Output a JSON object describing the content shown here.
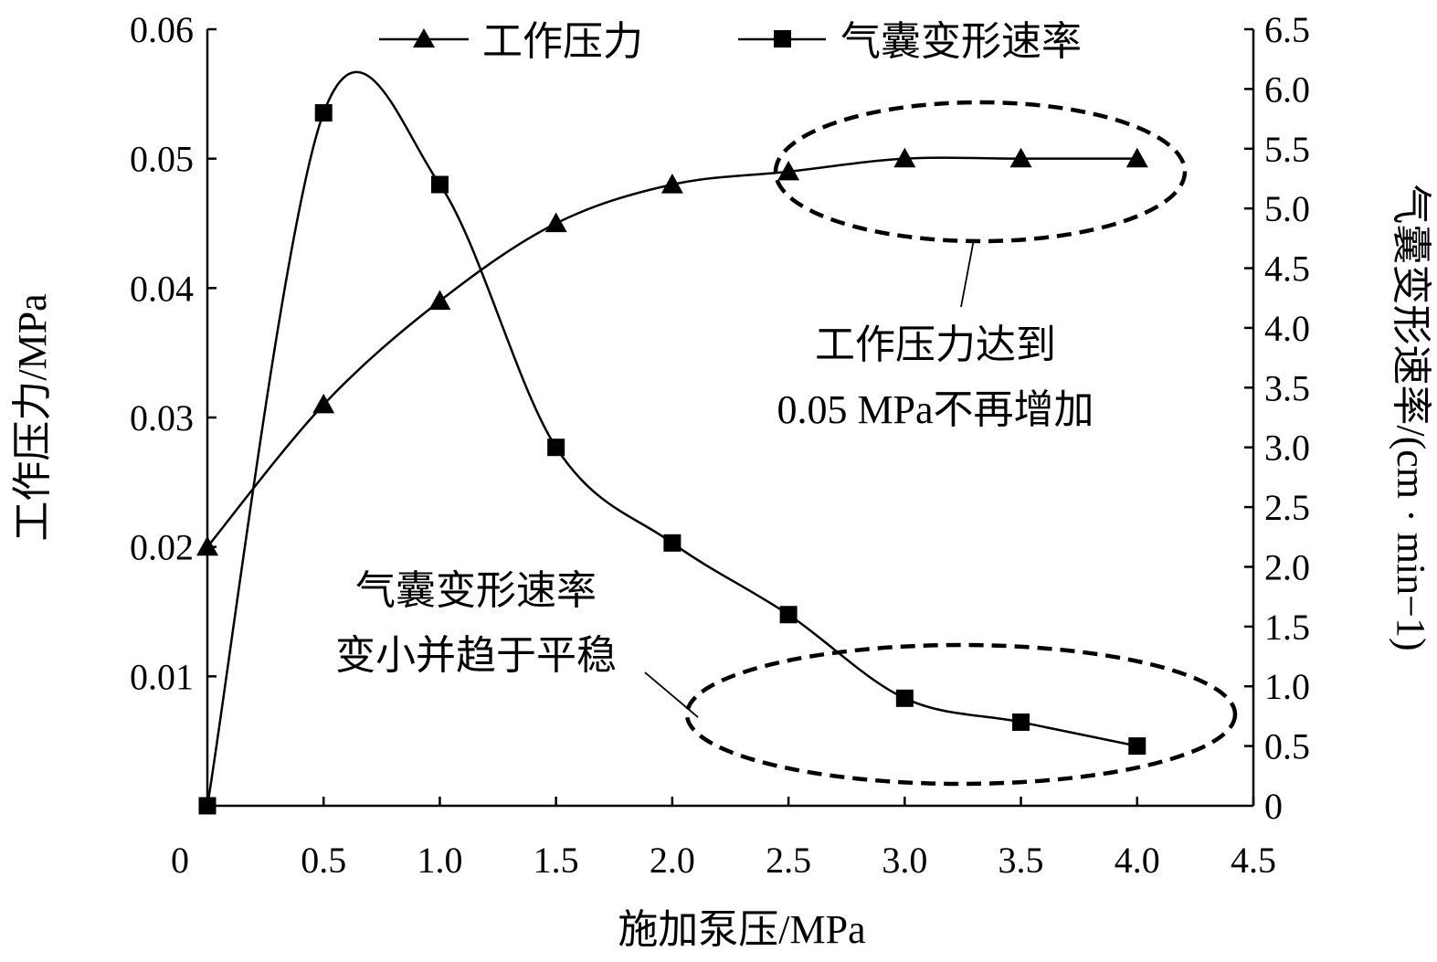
{
  "chart_data": {
    "type": "line",
    "x": [
      0,
      0.5,
      1.0,
      1.5,
      2.0,
      2.5,
      3.0,
      3.5,
      4.0
    ],
    "xlabel": "施加泵压/MPa",
    "ylabel_left": "工作压力/MPa",
    "ylabel_right": "气囊变形速率/(cm · min−1)",
    "xlim": [
      0,
      4.5
    ],
    "ylim_left": [
      0,
      0.06
    ],
    "ylim_right": [
      0,
      6.5
    ],
    "x_tick_labels": [
      "0",
      "0.5",
      "1.0",
      "1.5",
      "2.0",
      "2.5",
      "3.0",
      "3.5",
      "4.0",
      "4.5"
    ],
    "y_left_tick_labels": [
      "0.01",
      "0.02",
      "0.03",
      "0.04",
      "0.05",
      "0.06"
    ],
    "y_right_tick_labels": [
      "0",
      "0.5",
      "1.0",
      "1.5",
      "2.0",
      "2.5",
      "3.0",
      "3.5",
      "4.0",
      "4.5",
      "5.0",
      "5.5",
      "6.0",
      "6.5"
    ],
    "series": [
      {
        "name": "工作压力",
        "axis": "left",
        "marker": "triangle",
        "values": [
          0.02,
          0.031,
          0.039,
          0.045,
          0.048,
          0.049,
          0.05,
          0.05,
          0.05
        ]
      },
      {
        "name": "气囊变形速率",
        "axis": "right",
        "marker": "square",
        "values": [
          0,
          5.8,
          5.2,
          3.0,
          2.2,
          1.6,
          0.9,
          0.7,
          0.5
        ]
      }
    ],
    "legend_position": "top",
    "annotations": [
      {
        "text_lines": [
          "工作压力达到",
          "0.05 MPa不再增加"
        ],
        "target_series": "工作压力",
        "x_range": [
          2.5,
          4.0
        ]
      },
      {
        "text_lines": [
          "气囊变形速率",
          "变小并趋于平稳"
        ],
        "target_series": "气囊变形速率",
        "x_range": [
          2.0,
          4.0
        ]
      }
    ]
  }
}
